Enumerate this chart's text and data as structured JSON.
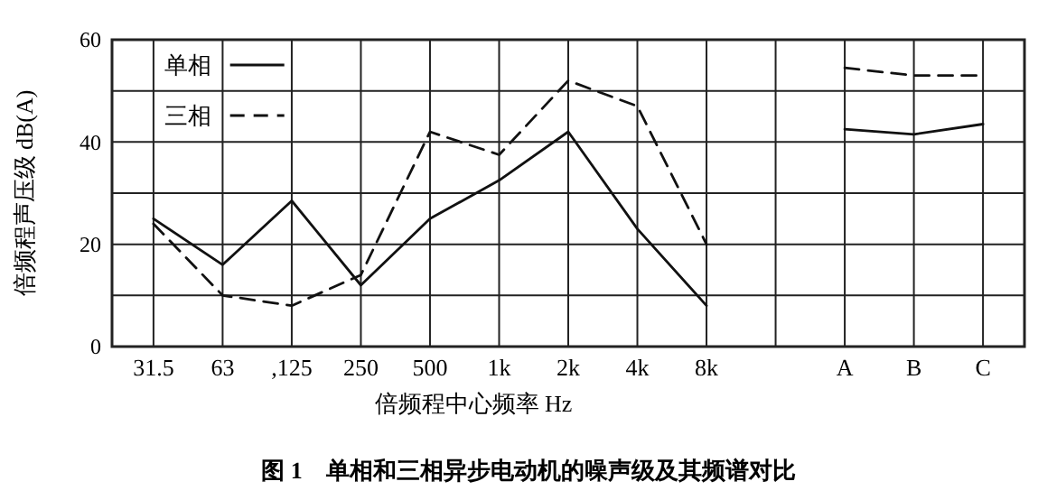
{
  "chart_data": {
    "type": "line",
    "title": "图 1　单相和三相异步电动机的噪声级及其频谱对比",
    "xlabel": "倍频程中心频率 Hz",
    "ylabel": "倍频程声压级 dB(A)",
    "categories": [
      "31.5",
      "63",
      ",125",
      "250",
      "500",
      "1k",
      "2k",
      "4k",
      "8k",
      null,
      "A",
      "B",
      "C"
    ],
    "series": [
      {
        "name": "单相",
        "color": "#111111",
        "line_style": "solid",
        "values": [
          25,
          16,
          28.5,
          12,
          25,
          32.5,
          42,
          23,
          8,
          null,
          42.5,
          41.5,
          43.5
        ]
      },
      {
        "name": "三相",
        "color": "#111111",
        "line_style": "dashed",
        "values": [
          24,
          10,
          8,
          14,
          42,
          37.5,
          52,
          47,
          20,
          null,
          54.5,
          53,
          53
        ]
      }
    ],
    "ylim": [
      0,
      60
    ],
    "yticks": [
      0,
      {
        "value": 10,
        "label": null
      },
      20,
      {
        "value": 30,
        "label": null
      },
      40,
      {
        "value": 50,
        "label": null
      },
      60
    ],
    "grid": true,
    "legend": "top left",
    "marker": "none"
  }
}
